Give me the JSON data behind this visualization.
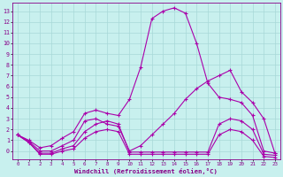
{
  "xlabel": "Windchill (Refroidissement éolien,°C)",
  "background_color": "#c8f0ee",
  "grid_color": "#a8d8d8",
  "line_color": "#aa00aa",
  "spine_color": "#880088",
  "tick_color": "#880088",
  "x_values": [
    0,
    1,
    2,
    3,
    4,
    5,
    6,
    7,
    8,
    9,
    10,
    11,
    12,
    13,
    14,
    15,
    16,
    17,
    18,
    19,
    20,
    21,
    22,
    23
  ],
  "y_ticks": [
    0,
    1,
    2,
    3,
    4,
    5,
    6,
    7,
    8,
    9,
    10,
    11,
    12,
    13
  ],
  "ylim": [
    -0.8,
    13.8
  ],
  "xlim": [
    -0.5,
    23.5
  ],
  "lines": [
    [
      1.5,
      1.0,
      0.3,
      0.5,
      1.2,
      1.8,
      3.5,
      3.8,
      3.5,
      3.3,
      4.8,
      7.8,
      12.3,
      13.0,
      13.3,
      12.8,
      10.0,
      6.3,
      5.0,
      4.8,
      4.5,
      3.3,
      0.0,
      -0.2
    ],
    [
      1.5,
      0.9,
      0.0,
      0.0,
      0.5,
      1.0,
      2.8,
      3.0,
      2.5,
      2.3,
      0.0,
      0.5,
      1.5,
      2.5,
      3.5,
      4.8,
      5.8,
      6.5,
      7.0,
      7.5,
      5.5,
      4.5,
      3.0,
      -0.2
    ],
    [
      1.5,
      0.8,
      -0.2,
      -0.2,
      0.2,
      0.5,
      1.8,
      2.5,
      2.8,
      2.5,
      -0.1,
      -0.1,
      -0.1,
      -0.1,
      -0.1,
      -0.1,
      -0.1,
      -0.1,
      2.5,
      3.0,
      2.8,
      2.0,
      -0.3,
      -0.4
    ],
    [
      1.5,
      0.8,
      -0.3,
      -0.3,
      0.0,
      0.2,
      1.2,
      1.8,
      2.0,
      1.8,
      -0.3,
      -0.3,
      -0.3,
      -0.3,
      -0.3,
      -0.3,
      -0.3,
      -0.3,
      1.5,
      2.0,
      1.8,
      1.0,
      -0.5,
      -0.6
    ]
  ]
}
